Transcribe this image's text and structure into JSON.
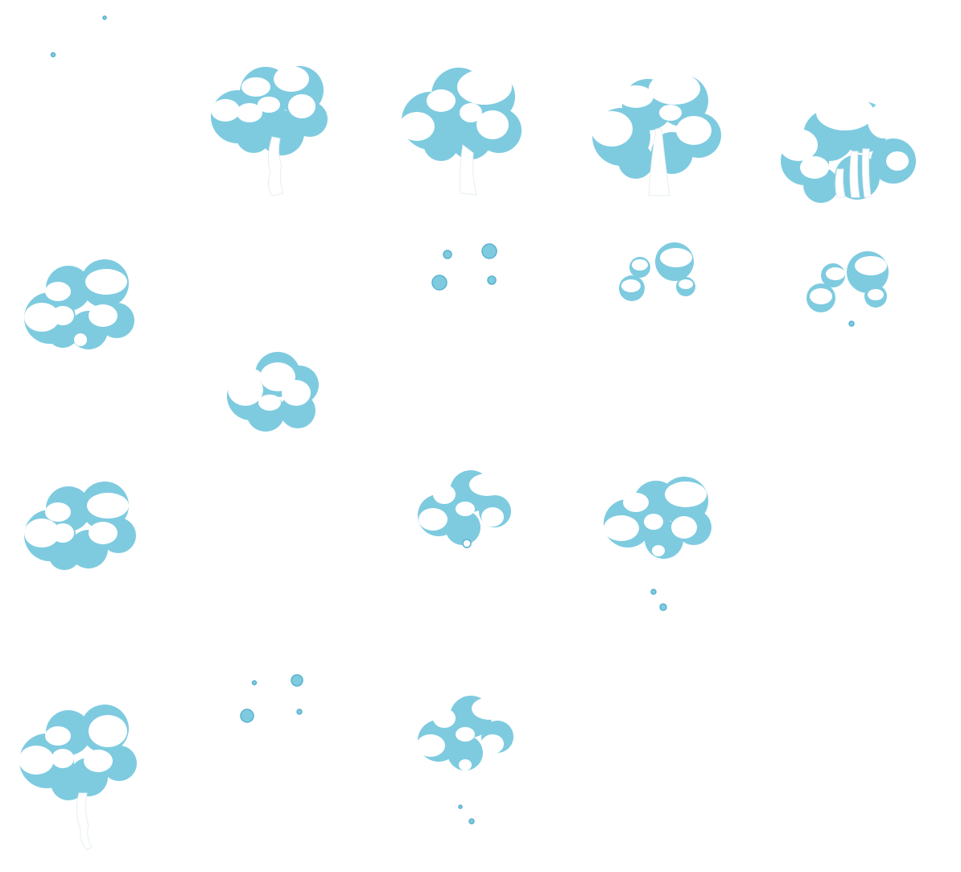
{
  "sprite_sheet": {
    "name": "",
    "colors": {
      "background": "#ffffff",
      "cloud_shadow": "#7ecbe0",
      "cloud_highlight": "#ffffff",
      "outline": "#5bb2cf"
    },
    "frames": [
      {
        "row": 1,
        "col": 1,
        "kind": "sparkles",
        "blue_puffs": 0
      },
      {
        "row": 1,
        "col": 2,
        "kind": "cloud-with-stem",
        "blue_puffs": 6
      },
      {
        "row": 1,
        "col": 3,
        "kind": "cloud-with-stem",
        "blue_puffs": 6
      },
      {
        "row": 1,
        "col": 4,
        "kind": "cloud-with-stem",
        "blue_puffs": 6
      },
      {
        "row": 1,
        "col": 5,
        "kind": "wide-cloud-with-streaks",
        "blue_puffs": 6
      },
      {
        "row": 2,
        "col": 1,
        "kind": "cloud-with-trail",
        "blue_puffs": 6
      },
      {
        "row": 2,
        "col": 3,
        "kind": "scattered-puffs",
        "blue_puffs": 4
      },
      {
        "row": 2,
        "col": 4,
        "kind": "scattered-puffs",
        "blue_puffs": 5
      },
      {
        "row": 2,
        "col": 5,
        "kind": "scattered-puffs",
        "blue_puffs": 5
      },
      {
        "row": 3,
        "col": 2,
        "kind": "dense-cloud",
        "blue_puffs": 6
      },
      {
        "row": 4,
        "col": 1,
        "kind": "cloud-with-trail",
        "blue_puffs": 6
      },
      {
        "row": 4,
        "col": 3,
        "kind": "cloud-small-drip",
        "blue_puffs": 6
      },
      {
        "row": 4,
        "col": 4,
        "kind": "cloud-with-trail",
        "blue_puffs": 6
      },
      {
        "row": 5,
        "col": 1,
        "kind": "cloud-with-stem",
        "blue_puffs": 6
      },
      {
        "row": 5,
        "col": 2,
        "kind": "scattered-puffs",
        "blue_puffs": 4
      },
      {
        "row": 5,
        "col": 3,
        "kind": "cloud-with-trail",
        "blue_puffs": 6
      }
    ]
  }
}
